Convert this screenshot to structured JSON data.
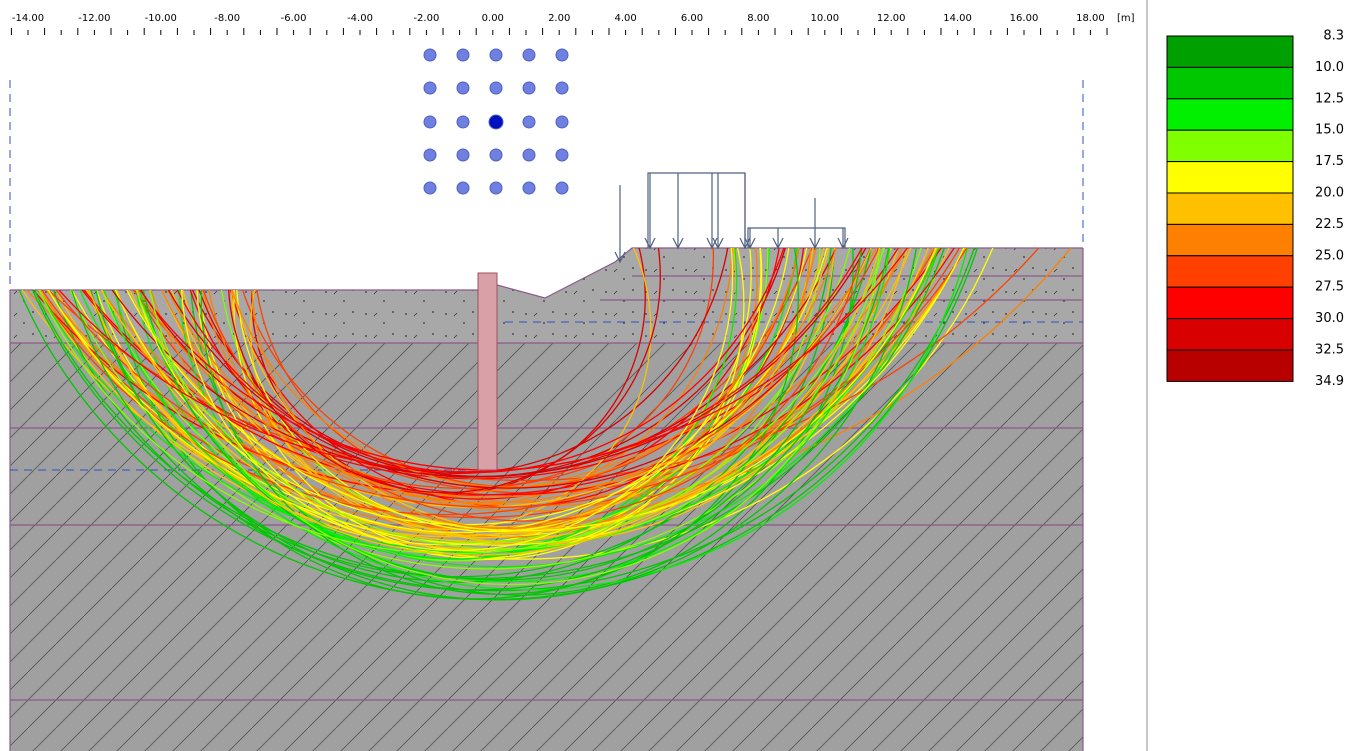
{
  "ruler": {
    "labels": [
      "-14.00",
      "-12.00",
      "-10.00",
      "-8.00",
      "-6.00",
      "-4.00",
      "-2.00",
      "0.00",
      "2.00",
      "4.00",
      "6.00",
      "8.00",
      "10.00",
      "12.00",
      "14.00",
      "16.00",
      "18.00"
    ],
    "unit": "[m]"
  },
  "legend": {
    "labels": [
      "8.3",
      "10.0",
      "12.5",
      "15.0",
      "17.5",
      "20.0",
      "22.5",
      "25.0",
      "27.5",
      "30.0",
      "32.5",
      "34.9"
    ],
    "colors": [
      "#00a000",
      "#00c800",
      "#00f000",
      "#80ff00",
      "#ffff00",
      "#ffc000",
      "#ff8000",
      "#ff4000",
      "#ff0000",
      "#d80000",
      "#b80000"
    ]
  }
}
